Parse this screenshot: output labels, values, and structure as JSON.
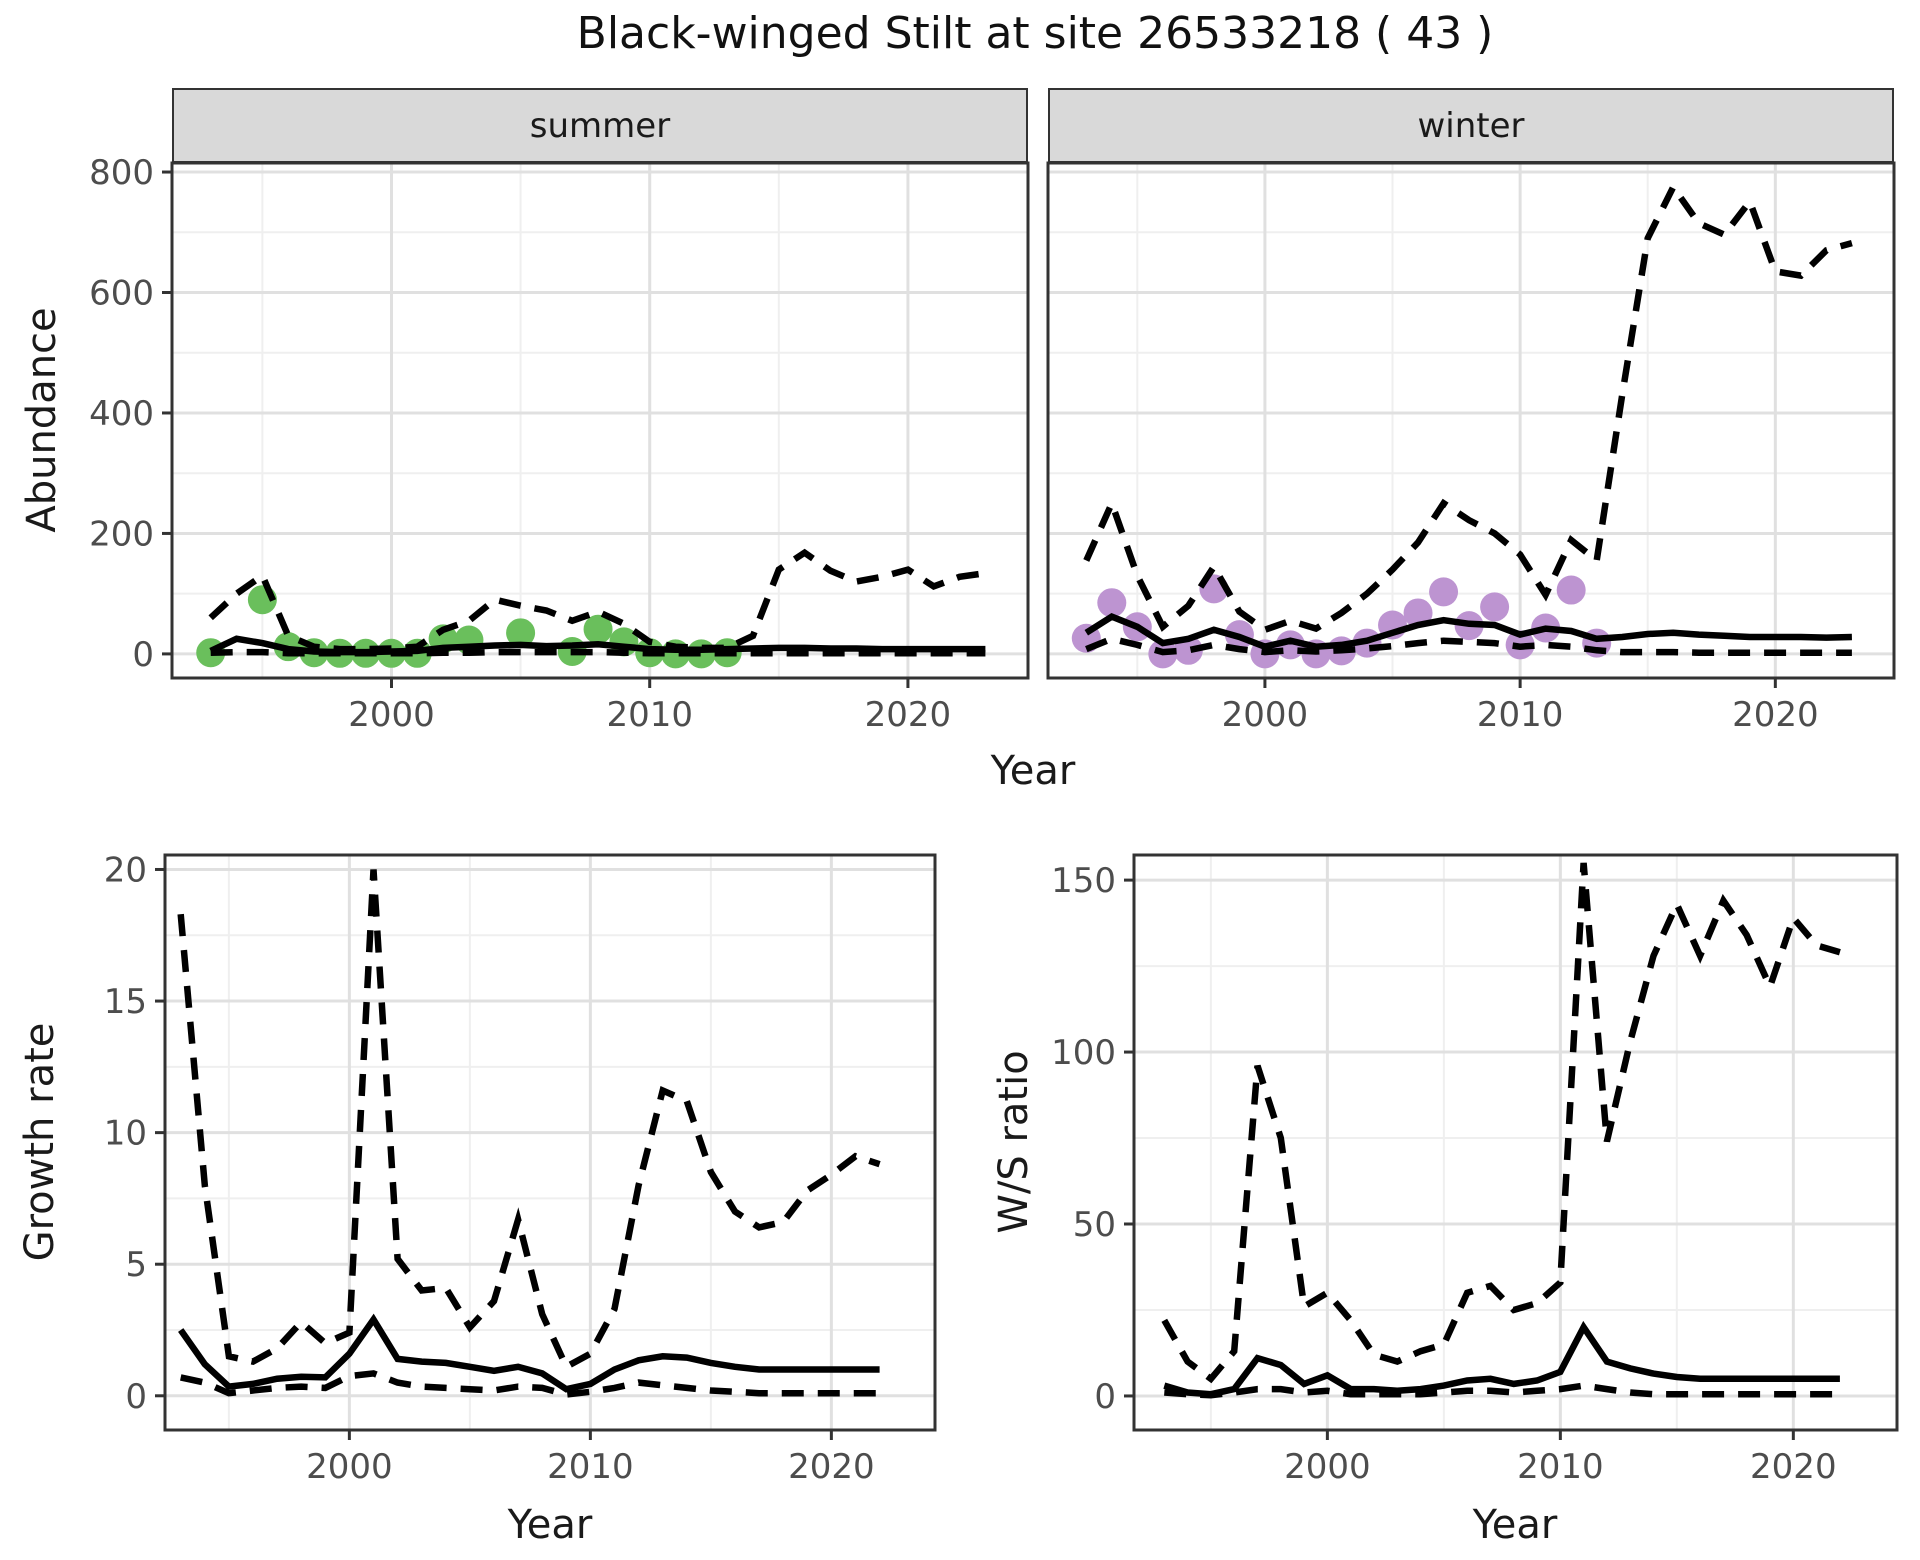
{
  "title": "Black-winged Stilt at site 26533218 ( 43 )",
  "colors": {
    "points_summer": "#6abf5c",
    "points_winter": "#bd94d1",
    "line": "#000000",
    "strip_bg": "#d9d9d9",
    "strip_border": "#333333",
    "panel_border": "#333333",
    "grid_major": "#e0e0e0",
    "grid_minor": "#efefef",
    "tick_mark": "#333333",
    "tick_label": "#4d4d4d",
    "text": "#1a1a1a"
  },
  "chart_data": [
    {
      "id": "abundance-summer",
      "type": "line",
      "facet_label": "summer",
      "ylabel": "Abundance",
      "xlabel": "Year",
      "x_domain": [
        1991.5,
        2024.65
      ],
      "y_domain": [
        -40,
        815
      ],
      "xticks": {
        "values": [
          2000,
          2010,
          2020
        ],
        "labels": [
          "2000",
          "2010",
          "2020"
        ]
      },
      "xticks_minor": [
        1995,
        2005,
        2015
      ],
      "yticks": {
        "values": [
          0,
          200,
          400,
          600,
          800
        ],
        "labels": [
          "0",
          "200",
          "400",
          "600",
          "800"
        ]
      },
      "yticks_minor": [
        100,
        300,
        500,
        700
      ],
      "show_y_axis": true,
      "years": [
        1993,
        1994,
        1995,
        1996,
        1997,
        1998,
        1999,
        2000,
        2001,
        2002,
        2003,
        2004,
        2005,
        2006,
        2007,
        2008,
        2009,
        2010,
        2011,
        2012,
        2013,
        2014,
        2015,
        2016,
        2017,
        2018,
        2019,
        2020,
        2021,
        2022,
        2023
      ],
      "series": [
        {
          "name": "median",
          "style": "solid",
          "values": [
            5,
            25,
            18,
            8,
            4,
            3,
            3,
            4,
            5,
            10,
            12,
            14,
            15,
            13,
            14,
            16,
            12,
            8,
            7,
            7,
            8,
            9,
            10,
            10,
            9,
            9,
            8,
            8,
            8,
            8,
            8
          ]
        },
        {
          "name": "upper-ci",
          "style": "dashed",
          "values": [
            60,
            100,
            130,
            30,
            12,
            8,
            8,
            9,
            12,
            40,
            55,
            90,
            80,
            72,
            55,
            70,
            50,
            20,
            12,
            10,
            10,
            30,
            140,
            168,
            138,
            120,
            128,
            140,
            112,
            128,
            134
          ]
        },
        {
          "name": "lower-ci",
          "style": "dashed",
          "values": [
            2,
            3,
            3,
            1,
            1,
            1,
            1,
            1,
            1,
            2,
            2,
            3,
            3,
            3,
            3,
            3,
            2,
            1,
            1,
            1,
            1,
            1,
            1,
            1,
            1,
            1,
            1,
            1,
            1,
            1,
            1
          ]
        }
      ],
      "points": {
        "name": "observed-counts",
        "color_key": "points_summer",
        "data": [
          [
            1993,
            2
          ],
          [
            1995,
            90
          ],
          [
            1996,
            12
          ],
          [
            1997,
            2
          ],
          [
            1998,
            1
          ],
          [
            1999,
            1
          ],
          [
            2000,
            1
          ],
          [
            2001,
            1
          ],
          [
            2002,
            25
          ],
          [
            2003,
            23
          ],
          [
            2005,
            35
          ],
          [
            2007,
            4
          ],
          [
            2008,
            41
          ],
          [
            2009,
            20
          ],
          [
            2010,
            2
          ],
          [
            2011,
            0
          ],
          [
            2012,
            0
          ],
          [
            2013,
            2
          ]
        ]
      }
    },
    {
      "id": "abundance-winter",
      "type": "line",
      "facet_label": "winter",
      "ylabel": "Abundance",
      "xlabel": "Year",
      "x_domain": [
        1991.5,
        2024.65
      ],
      "y_domain": [
        -40,
        815
      ],
      "xticks": {
        "values": [
          2000,
          2010,
          2020
        ],
        "labels": [
          "2000",
          "2010",
          "2020"
        ]
      },
      "xticks_minor": [
        1995,
        2005,
        2015
      ],
      "yticks": {
        "values": [
          0,
          200,
          400,
          600,
          800
        ],
        "labels": [
          "0",
          "200",
          "400",
          "600",
          "800"
        ]
      },
      "yticks_minor": [
        100,
        300,
        500,
        700
      ],
      "show_y_axis": false,
      "years": [
        1993,
        1994,
        1995,
        1996,
        1997,
        1998,
        1999,
        2000,
        2001,
        2002,
        2003,
        2004,
        2005,
        2006,
        2007,
        2008,
        2009,
        2010,
        2011,
        2012,
        2013,
        2014,
        2015,
        2016,
        2017,
        2018,
        2019,
        2020,
        2021,
        2022,
        2023
      ],
      "series": [
        {
          "name": "median",
          "style": "solid",
          "values": [
            35,
            62,
            45,
            18,
            25,
            40,
            28,
            12,
            22,
            12,
            15,
            22,
            35,
            48,
            56,
            50,
            48,
            32,
            42,
            38,
            25,
            28,
            33,
            35,
            32,
            30,
            28,
            28,
            28,
            27,
            28
          ]
        },
        {
          "name": "upper-ci",
          "style": "dashed",
          "values": [
            155,
            250,
            130,
            45,
            80,
            145,
            70,
            40,
            55,
            42,
            68,
            100,
            140,
            185,
            250,
            222,
            200,
            165,
            98,
            189,
            155,
            430,
            690,
            775,
            715,
            696,
            751,
            635,
            628,
            670,
            682
          ]
        },
        {
          "name": "lower-ci",
          "style": "dashed",
          "values": [
            8,
            25,
            15,
            3,
            6,
            15,
            8,
            3,
            6,
            4,
            6,
            9,
            13,
            18,
            22,
            20,
            18,
            12,
            15,
            12,
            6,
            3,
            3,
            3,
            2,
            2,
            2,
            2,
            2,
            2,
            2
          ]
        }
      ],
      "points": {
        "name": "observed-counts",
        "color_key": "points_winter",
        "data": [
          [
            1993,
            26
          ],
          [
            1994,
            85
          ],
          [
            1995,
            45
          ],
          [
            1996,
            0
          ],
          [
            1997,
            6
          ],
          [
            1998,
            108
          ],
          [
            1999,
            32
          ],
          [
            2000,
            0
          ],
          [
            2001,
            15
          ],
          [
            2002,
            0
          ],
          [
            2003,
            5
          ],
          [
            2004,
            18
          ],
          [
            2005,
            48
          ],
          [
            2006,
            68
          ],
          [
            2007,
            103
          ],
          [
            2008,
            47
          ],
          [
            2009,
            78
          ],
          [
            2010,
            15
          ],
          [
            2011,
            43
          ],
          [
            2012,
            106
          ],
          [
            2013,
            18
          ]
        ]
      }
    },
    {
      "id": "growth-rate",
      "type": "line",
      "facet_label": "",
      "ylabel": "Growth rate",
      "xlabel": "Year",
      "x_domain": [
        1992.35,
        2024.3
      ],
      "y_domain": [
        -1.3,
        20.55
      ],
      "xticks": {
        "values": [
          2000,
          2010,
          2020
        ],
        "labels": [
          "2000",
          "2010",
          "2020"
        ]
      },
      "xticks_minor": [
        1995,
        2005,
        2015
      ],
      "yticks": {
        "values": [
          0,
          5,
          10,
          15,
          20
        ],
        "labels": [
          "0",
          "5",
          "10",
          "15",
          "20"
        ]
      },
      "yticks_minor": [
        2.5,
        7.5,
        12.5,
        17.5
      ],
      "show_y_axis": true,
      "years": [
        1993,
        1994,
        1995,
        1996,
        1997,
        1998,
        1999,
        2000,
        2001,
        2002,
        2003,
        2004,
        2005,
        2006,
        2007,
        2008,
        2009,
        2010,
        2011,
        2012,
        2013,
        2014,
        2015,
        2016,
        2017,
        2018,
        2019,
        2020,
        2021,
        2022
      ],
      "series": [
        {
          "name": "median",
          "style": "solid",
          "values": [
            2.5,
            1.2,
            0.35,
            0.45,
            0.65,
            0.72,
            0.7,
            1.6,
            2.9,
            1.4,
            1.3,
            1.25,
            1.1,
            0.95,
            1.1,
            0.85,
            0.25,
            0.45,
            1.0,
            1.35,
            1.5,
            1.45,
            1.25,
            1.1,
            1.0,
            1.0,
            1.0,
            1.0,
            1.0,
            1.0
          ]
        },
        {
          "name": "upper-ci",
          "style": "dashed",
          "values": [
            18.3,
            8,
            1.5,
            1.3,
            1.8,
            2.8,
            2.0,
            2.4,
            20,
            5.2,
            4.0,
            4.1,
            2.6,
            3.6,
            6.7,
            3.1,
            1.1,
            1.6,
            3.3,
            8.0,
            11.6,
            11.2,
            8.5,
            7.0,
            6.4,
            6.6,
            7.8,
            8.4,
            9.1,
            8.8
          ]
        },
        {
          "name": "lower-ci",
          "style": "dashed",
          "values": [
            0.7,
            0.5,
            0.1,
            0.2,
            0.3,
            0.35,
            0.3,
            0.75,
            0.85,
            0.5,
            0.35,
            0.3,
            0.25,
            0.2,
            0.35,
            0.3,
            0.05,
            0.15,
            0.3,
            0.5,
            0.4,
            0.3,
            0.2,
            0.15,
            0.1,
            0.1,
            0.1,
            0.1,
            0.1,
            0.1
          ]
        }
      ],
      "points": null
    },
    {
      "id": "ws-ratio",
      "type": "line",
      "facet_label": "",
      "ylabel": "W/S ratio",
      "xlabel": "Year",
      "x_domain": [
        1991.7,
        2024.45
      ],
      "y_domain": [
        -9.9,
        157.3
      ],
      "xticks": {
        "values": [
          2000,
          2010,
          2020
        ],
        "labels": [
          "2000",
          "2010",
          "2020"
        ]
      },
      "xticks_minor": [
        1995,
        2005,
        2015
      ],
      "yticks": {
        "values": [
          0,
          50,
          100,
          150
        ],
        "labels": [
          "0",
          "50",
          "100",
          "150"
        ]
      },
      "yticks_minor": [
        25,
        75,
        125
      ],
      "show_y_axis": true,
      "years": [
        1993,
        1994,
        1995,
        1996,
        1997,
        1998,
        1999,
        2000,
        2001,
        2002,
        2003,
        2004,
        2005,
        2006,
        2007,
        2008,
        2009,
        2010,
        2011,
        2012,
        2013,
        2014,
        2015,
        2016,
        2017,
        2018,
        2019,
        2020,
        2021,
        2022
      ],
      "series": [
        {
          "name": "median",
          "style": "solid",
          "values": [
            3,
            1,
            0.5,
            2,
            11,
            9,
            3.5,
            6,
            2,
            2,
            1.5,
            2,
            3,
            4.5,
            5,
            3.5,
            4.5,
            7,
            20,
            10,
            8,
            6.5,
            5.5,
            5,
            5,
            5,
            5,
            5,
            5,
            5
          ]
        },
        {
          "name": "upper-ci",
          "style": "dashed",
          "values": [
            22,
            10,
            5,
            13,
            96,
            75,
            26,
            30,
            22,
            12,
            10,
            13,
            15,
            30,
            32,
            25,
            27,
            33,
            155,
            74,
            103,
            128,
            143,
            128,
            144,
            134,
            119,
            139,
            131,
            129
          ]
        },
        {
          "name": "lower-ci",
          "style": "dashed",
          "values": [
            1,
            0.5,
            0.2,
            1,
            2,
            2,
            1,
            1.5,
            0.5,
            0.5,
            0.5,
            0.5,
            1,
            1.5,
            1.5,
            1,
            1.5,
            2,
            3,
            2,
            1,
            0.5,
            0.5,
            0.5,
            0.5,
            0.5,
            0.5,
            0.5,
            0.5,
            0.5
          ]
        }
      ],
      "points": null
    }
  ]
}
